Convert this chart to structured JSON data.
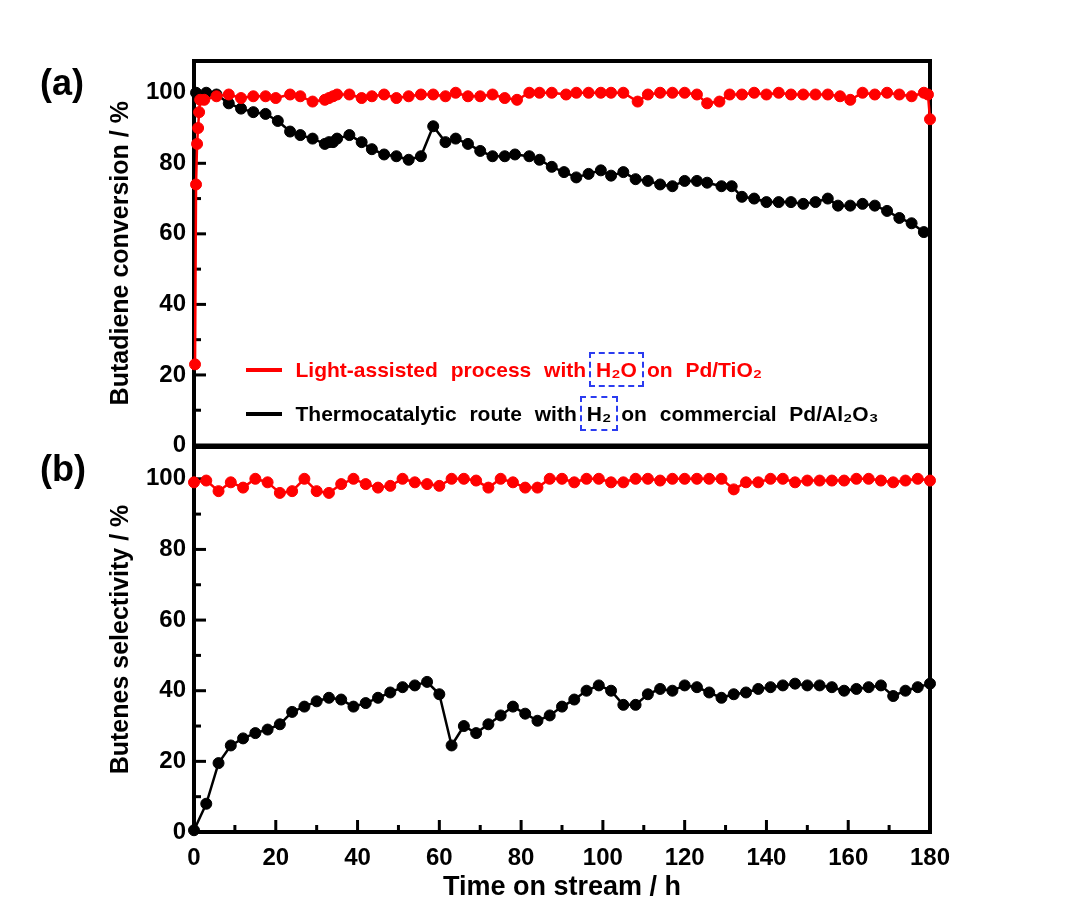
{
  "chart_data": [
    {
      "type": "line",
      "title": "(a)",
      "ylabel": "Butadiene conversion / %",
      "series": [
        {
          "name": "Light-assisted process with H₂O on Pd/TiO₂",
          "color": "#ff0000",
          "x": [
            0.25,
            0.5,
            0.75,
            1,
            1.25,
            1.5,
            2.5,
            5.5,
            8.5,
            11.5,
            14.5,
            17.5,
            20,
            23.5,
            26,
            29,
            32,
            33,
            34,
            35,
            38,
            41,
            43.5,
            46.5,
            49.5,
            52.5,
            55.5,
            58.5,
            61.5,
            64,
            67,
            70,
            73,
            76,
            79,
            82,
            84.5,
            87.5,
            91,
            93.5,
            96.5,
            99.5,
            102,
            105,
            108.5,
            111,
            114,
            117,
            120,
            123,
            125.5,
            128.5,
            131,
            134,
            137,
            140,
            143,
            146,
            149,
            152,
            155,
            158,
            160.5,
            163.5,
            166.5,
            169.5,
            172.5,
            175.5,
            178.5,
            179.5,
            180
          ],
          "values": [
            23,
            74,
            85.5,
            90,
            94.5,
            98,
            98,
            99,
            99.5,
            98.5,
            99,
            99,
            98.5,
            99.5,
            99,
            97.5,
            98,
            98.5,
            99,
            99.5,
            99.5,
            98.5,
            99,
            99.5,
            98.5,
            99,
            99.5,
            99.5,
            99,
            100,
            99,
            99,
            99.5,
            98.5,
            98,
            100,
            100,
            100,
            99.5,
            100,
            100,
            100,
            100,
            100,
            97.5,
            99.5,
            100,
            100,
            100,
            99.5,
            97,
            97.5,
            99.5,
            99.5,
            100,
            99.5,
            100,
            99.5,
            99.5,
            99.5,
            99.5,
            99,
            98,
            100,
            99.5,
            100,
            99.5,
            99,
            100,
            99.5,
            92.5
          ]
        },
        {
          "name": "Thermocatalytic route with H₂ on commercial Pd/Al₂O₃",
          "color": "#000000",
          "x": [
            0.5,
            3,
            5.5,
            8.5,
            11.5,
            14.5,
            17.5,
            20.5,
            23.5,
            26,
            29,
            32,
            33,
            34,
            35,
            38,
            41,
            43.5,
            46.5,
            49.5,
            52.5,
            55.5,
            58.5,
            61.5,
            64,
            67,
            70,
            73,
            76,
            78.5,
            82,
            84.5,
            87.5,
            90.5,
            93.5,
            96.5,
            99.5,
            102,
            105,
            108,
            111,
            114,
            117,
            120,
            123,
            125.5,
            129,
            131.5,
            134,
            137,
            140,
            143,
            146,
            149,
            152,
            155,
            157.5,
            160.5,
            163.5,
            166.5,
            169.5,
            172.5,
            175.5,
            178.5
          ],
          "values": [
            100,
            100,
            99.5,
            97,
            95.5,
            94.5,
            94,
            92,
            89,
            88,
            87,
            85.5,
            86,
            86,
            87,
            88,
            86,
            84,
            82.5,
            82,
            81,
            82,
            90.5,
            86,
            87,
            85.5,
            83.5,
            82,
            82,
            82.5,
            82,
            81,
            79,
            77.5,
            76,
            77,
            78,
            76.5,
            77.5,
            75.5,
            75,
            74,
            73.5,
            75,
            75,
            74.5,
            73.5,
            73.5,
            70.5,
            70,
            69,
            69,
            69,
            68.5,
            69,
            70,
            68,
            68,
            68.5,
            68,
            66.5,
            64.5,
            63,
            60.5
          ]
        }
      ],
      "xlim": [
        0,
        180
      ],
      "ylim": [
        0,
        109
      ],
      "yticks": [
        0,
        {
          "value": 10,
          "label": null
        },
        20,
        {
          "value": 30,
          "label": null
        },
        40,
        {
          "value": 50,
          "label": null
        },
        60,
        {
          "value": 70,
          "label": null
        },
        80,
        {
          "value": 90,
          "label": null
        },
        100
      ],
      "tick_labels": "y",
      "legend": "bottom",
      "marker": "circle"
    },
    {
      "type": "line",
      "title": "(b)",
      "xlabel": "Time on stream / h",
      "ylabel": "Butenes selectivity / %",
      "x": [
        0,
        3,
        6,
        9,
        12,
        15,
        18,
        21,
        24,
        27,
        30,
        33,
        36,
        39,
        42,
        45,
        48,
        51,
        54,
        57,
        60,
        63,
        66,
        69,
        72,
        75,
        78,
        81,
        84,
        87,
        90,
        93,
        96,
        99,
        102,
        105,
        108,
        111,
        114,
        117,
        120,
        123,
        126,
        129,
        132,
        135,
        138,
        141,
        144,
        147,
        150,
        153,
        156,
        159,
        162,
        165,
        168,
        171,
        174,
        177,
        180
      ],
      "series": [
        {
          "color": "#ff0000",
          "values": [
            99,
            99.5,
            96.5,
            99,
            97.5,
            100,
            99,
            96,
            96.5,
            100,
            96.5,
            96,
            98.5,
            100,
            98.5,
            97.5,
            98,
            100,
            99,
            98.5,
            98,
            100,
            100,
            99.5,
            97.5,
            100,
            99,
            97.5,
            97.5,
            100,
            100,
            99,
            100,
            100,
            99,
            99,
            100,
            100,
            99.5,
            100,
            100,
            100,
            100,
            100,
            97,
            99,
            99,
            100,
            100,
            99,
            99.5,
            99.5,
            99.5,
            99.5,
            100,
            100,
            99.5,
            99,
            99.5,
            100,
            99.5
          ]
        },
        {
          "color": "#000000",
          "values": [
            0.5,
            8,
            19.5,
            24.5,
            26.5,
            28,
            29,
            30.5,
            34,
            35.5,
            37,
            38,
            37.5,
            35.5,
            36.5,
            38,
            39.5,
            41,
            41.5,
            42.5,
            39,
            24.5,
            30,
            28,
            30.5,
            33,
            35.5,
            33.5,
            31.5,
            33,
            35.5,
            37.5,
            40,
            41.5,
            40,
            36,
            36,
            39,
            40.5,
            40,
            41.5,
            41,
            39.5,
            38,
            39,
            39.5,
            40.5,
            41,
            41.5,
            42,
            41.5,
            41.5,
            41,
            40,
            40.5,
            41,
            41.5,
            38.5,
            40,
            41,
            42
          ]
        }
      ],
      "xlim": [
        0,
        180
      ],
      "ylim": [
        0,
        109
      ],
      "xticks": [
        0,
        {
          "value": 10,
          "label": null
        },
        20,
        {
          "value": 30,
          "label": null
        },
        40,
        {
          "value": 50,
          "label": null
        },
        60,
        {
          "value": 70,
          "label": null
        },
        80,
        {
          "value": 90,
          "label": null
        },
        100,
        {
          "value": 110,
          "label": null
        },
        120,
        {
          "value": 130,
          "label": null
        },
        140,
        {
          "value": 150,
          "label": null
        },
        160,
        {
          "value": 170,
          "label": null
        },
        180
      ],
      "yticks": [
        0,
        {
          "value": 10,
          "label": null
        },
        20,
        {
          "value": 30,
          "label": null
        },
        40,
        {
          "value": 50,
          "label": null
        },
        60,
        {
          "value": 70,
          "label": null
        },
        80,
        {
          "value": 90,
          "label": null
        },
        100
      ],
      "marker": "circle"
    }
  ]
}
